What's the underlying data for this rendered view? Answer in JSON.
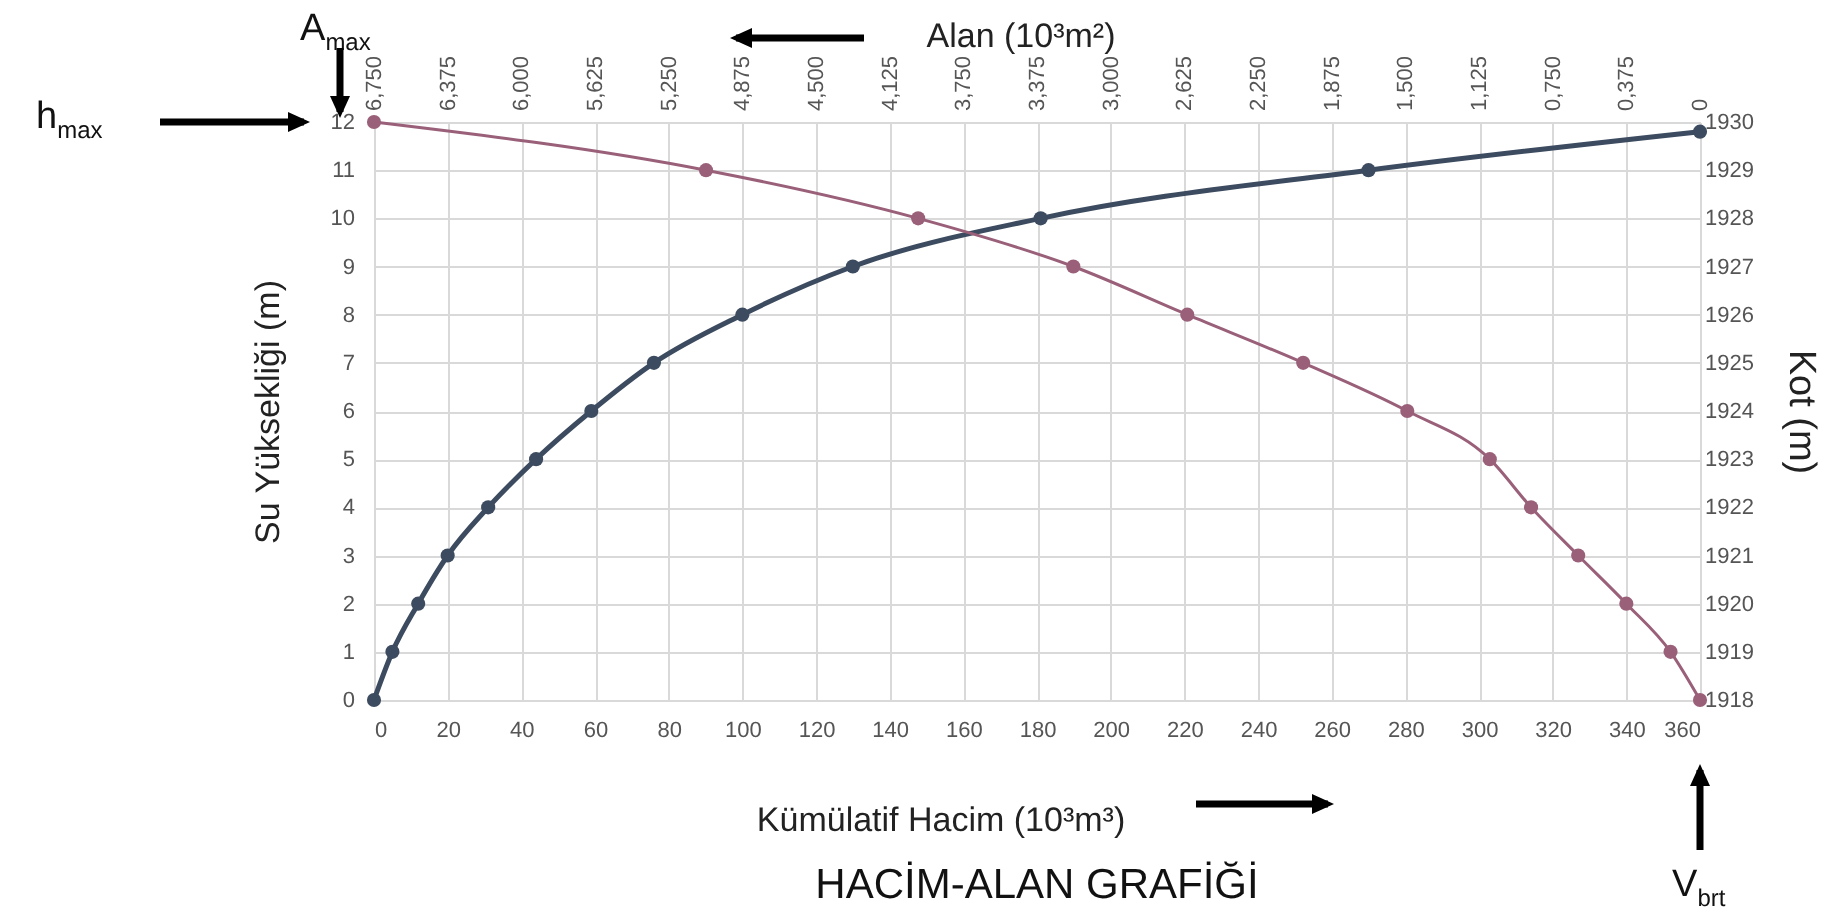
{
  "chart_data": {
    "type": "line",
    "title": "HACİM-ALAN GRAFİĞİ",
    "xlabel": "Kümülatif Hacim (10³m³)",
    "x2label": "Alan (10³m²)",
    "ylabel": "Su Yüksekliği (m)",
    "y2label": "Kot (m)",
    "annotations": [
      "A$_{max}$",
      "h$_{max}$",
      "V$_{brt}$"
    ],
    "series": [
      {
        "color": "#3c4b5f",
        "x": [
          0,
          5,
          12,
          20,
          31,
          44,
          59,
          76,
          100,
          130,
          181,
          270,
          360
        ],
        "values": [
          0,
          1,
          2,
          3,
          4,
          5,
          6,
          7,
          8,
          9,
          10,
          11,
          11.8
        ]
      },
      {
        "color": "#9a6079",
        "axis": "x2",
        "x": [
          6.75,
          5.06,
          3.98,
          3.19,
          2.61,
          2.02,
          1.49,
          1.07,
          0.86,
          0.62,
          0.375,
          0.15,
          0
        ],
        "values": [
          12,
          11,
          10,
          9,
          8,
          7,
          6,
          5,
          4,
          3,
          2,
          1,
          0
        ]
      }
    ],
    "xlim": [
      0,
      360
    ],
    "xticks": [
      0,
      20,
      40,
      60,
      80,
      100,
      120,
      140,
      160,
      180,
      200,
      220,
      240,
      260,
      280,
      300,
      320,
      340,
      360
    ],
    "x2lim": [
      6.75,
      0
    ],
    "x2ticks": [
      {
        "value": 6.75,
        "label": "6,750"
      },
      {
        "value": 6.375,
        "label": "6,375"
      },
      {
        "value": 6,
        "label": "6,000"
      },
      {
        "value": 5.625,
        "label": "5,625"
      },
      {
        "value": 5.25,
        "label": "5,250"
      },
      {
        "value": 4.875,
        "label": "4,875"
      },
      {
        "value": 4.5,
        "label": "4,500"
      },
      {
        "value": 4.125,
        "label": "4,125"
      },
      {
        "value": 3.75,
        "label": "3,750"
      },
      {
        "value": 3.375,
        "label": "3,375"
      },
      {
        "value": 3,
        "label": "3,000"
      },
      {
        "value": 2.625,
        "label": "2,625"
      },
      {
        "value": 2.25,
        "label": "2,250"
      },
      {
        "value": 1.875,
        "label": "1,875"
      },
      {
        "value": 1.5,
        "label": "1,500"
      },
      {
        "value": 1.125,
        "label": "1,125"
      },
      {
        "value": 0.75,
        "label": "0,750"
      },
      {
        "value": 0.375,
        "label": "0,375"
      },
      {
        "value": 0,
        "label": "0"
      }
    ],
    "ylim": [
      0,
      12
    ],
    "yticks": [
      0,
      1,
      2,
      3,
      4,
      5,
      6,
      7,
      8,
      9,
      10,
      11,
      12
    ],
    "y2lim": [
      1918,
      1930
    ],
    "y2ticks": [
      1918,
      1919,
      1920,
      1921,
      1922,
      1923,
      1924,
      1925,
      1926,
      1927,
      1928,
      1929,
      1930
    ],
    "grid": true,
    "marker": "circle",
    "line_style": "solid"
  }
}
